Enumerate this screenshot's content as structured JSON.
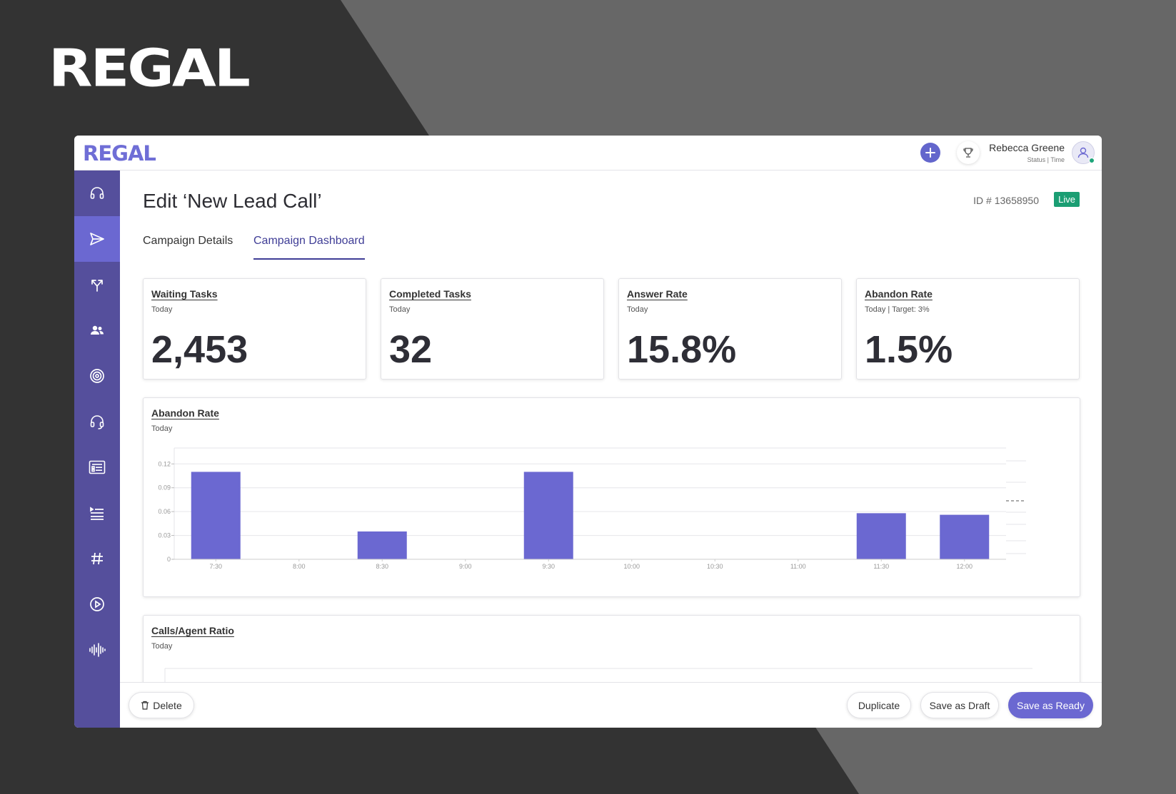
{
  "brand": {
    "name": "REGAL"
  },
  "app": {
    "logo": "REGAL",
    "user": {
      "name": "Rebecca Greene",
      "status": "Status | Time"
    },
    "icons": {
      "add": "plus-icon",
      "trophy": "trophy-icon",
      "avatar": "user-icon"
    }
  },
  "sidebar": {
    "items": [
      {
        "icon": "headset-icon",
        "active": false
      },
      {
        "icon": "send-icon",
        "active": true
      },
      {
        "icon": "split-arrows-icon",
        "active": false
      },
      {
        "icon": "people-icon",
        "active": false
      },
      {
        "icon": "target-icon",
        "active": false
      },
      {
        "icon": "headset-loop-icon",
        "active": false
      },
      {
        "icon": "id-card-icon",
        "active": false
      },
      {
        "icon": "list-icon",
        "active": false
      },
      {
        "icon": "hash-icon",
        "active": false
      },
      {
        "icon": "play-circle-icon",
        "active": false
      },
      {
        "icon": "waveform-icon",
        "active": false
      }
    ]
  },
  "page": {
    "title": "Edit ‘New Lead Call’",
    "id_label": "ID # 13658950",
    "status_badge": "Live",
    "tabs": [
      {
        "label": "Campaign Details",
        "active": false
      },
      {
        "label": "Campaign Dashboard",
        "active": true
      }
    ]
  },
  "stats": [
    {
      "title": "Waiting Tasks",
      "subtitle": "Today",
      "value": "2,453"
    },
    {
      "title": "Completed Tasks",
      "subtitle": "Today",
      "value": "32"
    },
    {
      "title": "Answer Rate",
      "subtitle": "Today",
      "value": "15.8%"
    },
    {
      "title": "Abandon Rate",
      "subtitle": "Today | Target: 3%",
      "value": "1.5%"
    }
  ],
  "abandon_chart": {
    "title": "Abandon Rate",
    "subtitle": "Today"
  },
  "calls_chart": {
    "title": "Calls/Agent Ratio",
    "subtitle": "Today"
  },
  "chart_data": {
    "type": "bar",
    "title": "Abandon Rate",
    "subtitle": "Today",
    "categories": [
      "7:30",
      "8:00",
      "8:30",
      "9:00",
      "9:30",
      "10:00",
      "10:30",
      "11:00",
      "11:30",
      "12:00"
    ],
    "values": [
      0.11,
      0,
      0.035,
      0,
      0.11,
      0,
      0,
      0,
      0.058,
      0.056
    ],
    "yticks": [
      "0",
      "0.03",
      "0.06",
      "0.09",
      "0.12"
    ],
    "ylim": [
      0,
      0.14
    ],
    "grid": true,
    "bar_color": "#6b68d1"
  },
  "footer": {
    "delete_label": "Delete",
    "duplicate_label": "Duplicate",
    "draft_label": "Save as Draft",
    "ready_label": "Save as Ready"
  },
  "colors": {
    "accent": "#6b68d1",
    "sidebar": "#554f9c",
    "live": "#1b9e73"
  }
}
